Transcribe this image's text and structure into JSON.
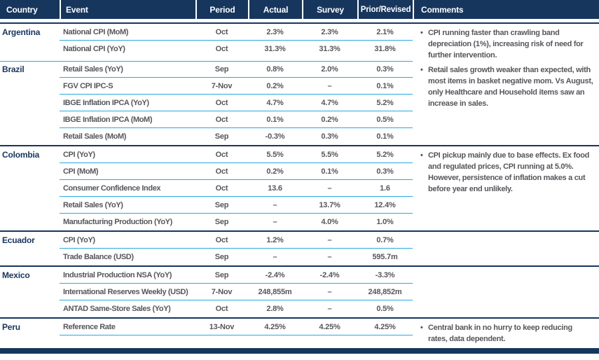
{
  "colors": {
    "navy": "#17365D",
    "cyan": "#29A9E0",
    "text_gray": "#56575B",
    "header_text": "#FFFFFF",
    "background": "#FFFFFF"
  },
  "bullet_glyph": "•",
  "header": {
    "columns": [
      {
        "key": "country",
        "label": "Country"
      },
      {
        "key": "event",
        "label": "Event"
      },
      {
        "key": "period",
        "label": "Period"
      },
      {
        "key": "actual",
        "label": "Actual"
      },
      {
        "key": "survey",
        "label": "Survey"
      },
      {
        "key": "prior",
        "label": "Prior/Revised"
      },
      {
        "key": "comments",
        "label": "Comments"
      }
    ]
  },
  "countries": [
    {
      "name": "Argentina",
      "rows": [
        {
          "event": "National CPI (MoM)",
          "period": "Oct",
          "actual": "2.3%",
          "survey": "2.3%",
          "prior": "2.1%"
        },
        {
          "event": "National CPI (YoY)",
          "period": "Oct",
          "actual": "31.3%",
          "survey": "31.3%",
          "prior": "31.8%"
        }
      ],
      "comment": "CPI running faster than crawling band depreciation (1%), increasing risk of need for further intervention."
    },
    {
      "name": "Brazil",
      "rows": [
        {
          "event": "Retail Sales (YoY)",
          "period": "Sep",
          "actual": "0.8%",
          "survey": "2.0%",
          "prior": "0.3%"
        },
        {
          "event": "FGV CPI IPC-S",
          "period": "7-Nov",
          "actual": "0.2%",
          "survey": "–",
          "prior": "0.1%"
        },
        {
          "event": "IBGE Inflation IPCA (YoY)",
          "period": "Oct",
          "actual": "4.7%",
          "survey": "4.7%",
          "prior": "5.2%"
        },
        {
          "event": "IBGE Inflation IPCA (MoM)",
          "period": "Oct",
          "actual": "0.1%",
          "survey": "0.2%",
          "prior": "0.5%"
        },
        {
          "event": "Retail Sales (MoM)",
          "period": "Sep",
          "actual": "-0.3%",
          "survey": "0.3%",
          "prior": "0.1%"
        }
      ],
      "comment": "Retail sales growth weaker than expected, with most items in basket negative mom. Vs August, only Healthcare and Household items saw an increase in sales."
    },
    {
      "name": "Colombia",
      "rows": [
        {
          "event": "CPI (YoY)",
          "period": "Oct",
          "actual": "5.5%",
          "survey": "5.5%",
          "prior": "5.2%"
        },
        {
          "event": "CPI (MoM)",
          "period": "Oct",
          "actual": "0.2%",
          "survey": "0.1%",
          "prior": "0.3%"
        },
        {
          "event": "Consumer Confidence Index",
          "period": "Oct",
          "actual": "13.6",
          "survey": "–",
          "prior": "1.6"
        },
        {
          "event": "Retail Sales (YoY)",
          "period": "Sep",
          "actual": "–",
          "survey": "13.7%",
          "prior": "12.4%"
        },
        {
          "event": "Manufacturing Production (YoY)",
          "period": "Sep",
          "actual": "–",
          "survey": "4.0%",
          "prior": "1.0%"
        }
      ],
      "comment": "CPI pickup mainly due to base effects. Ex food and regulated prices, CPI running at 5.0%. However, persistence of inflation makes a cut before year end unlikely."
    },
    {
      "name": "Ecuador",
      "rows": [
        {
          "event": "CPI (YoY)",
          "period": "Oct",
          "actual": "1.2%",
          "survey": "–",
          "prior": "0.7%"
        },
        {
          "event": "Trade Balance (USD)",
          "period": "Sep",
          "actual": "–",
          "survey": "–",
          "prior": "595.7m"
        }
      ],
      "comment": ""
    },
    {
      "name": "Mexico",
      "rows": [
        {
          "event": "Industrial Production NSA (YoY)",
          "period": "Sep",
          "actual": "-2.4%",
          "survey": "-2.4%",
          "prior": "-3.3%"
        },
        {
          "event": "International Reserves Weekly (USD)",
          "period": "7-Nov",
          "actual": "248,855m",
          "survey": "–",
          "prior": "248,852m"
        },
        {
          "event": "ANTAD Same-Store Sales (YoY)",
          "period": "Oct",
          "actual": "2.8%",
          "survey": "–",
          "prior": "0.5%"
        }
      ],
      "comment": ""
    },
    {
      "name": "Peru",
      "rows": [
        {
          "event": "Reference Rate",
          "period": "13-Nov",
          "actual": "4.25%",
          "survey": "4.25%",
          "prior": "4.25%"
        }
      ],
      "comment": "Central bank in no hurry to keep reducing rates, data dependent."
    }
  ]
}
